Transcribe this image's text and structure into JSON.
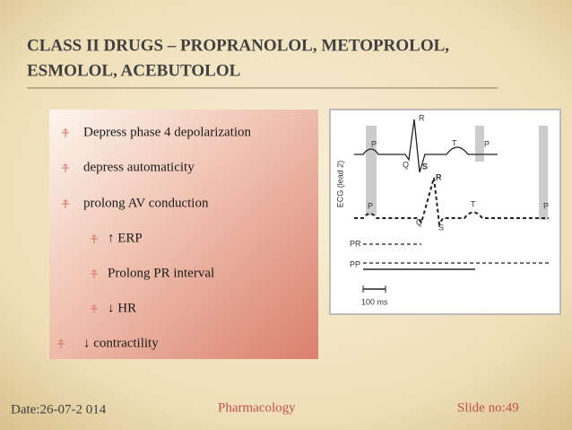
{
  "title": [
    "CLASS II DRUGS – PROPRANOLOL, METOPROLOL,",
    "ESMOLOL, ACEBUTOLOL"
  ],
  "bullets": [
    {
      "level": 1,
      "text": "Depress  phase 4 depolarization"
    },
    {
      "level": 1,
      "text": "depress automaticity"
    },
    {
      "level": 1,
      "text": "prolong AV conduction"
    },
    {
      "level": 2,
      "text": "↑ ERP"
    },
    {
      "level": 2,
      "text": "Prolong PR interval"
    },
    {
      "level": 2,
      "text": "↓ HR"
    },
    {
      "level": 1,
      "text": "↓ contractility"
    }
  ],
  "ecg": {
    "lead": "ECG (lead 2)",
    "top_waves": [
      "P",
      "Q",
      "R",
      "S",
      "T",
      "P"
    ],
    "bottom_waves": [
      "P",
      "Q",
      "R",
      "S",
      "T",
      "P"
    ],
    "intervals": [
      "PR",
      "PP"
    ],
    "scale": "100 ms"
  },
  "footer": {
    "date": "Date:26-07-2 014",
    "subject": "Pharmacology",
    "slide": "Slide no:49"
  }
}
